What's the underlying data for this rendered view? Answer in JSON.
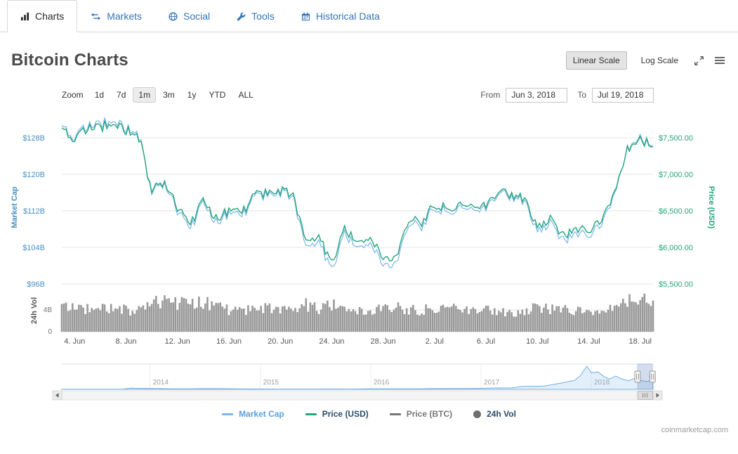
{
  "tabs": [
    {
      "label": "Charts",
      "icon": "bar-chart-icon",
      "active": true
    },
    {
      "label": "Markets",
      "icon": "exchange-arrows-icon",
      "active": false
    },
    {
      "label": "Social",
      "icon": "globe-icon",
      "active": false
    },
    {
      "label": "Tools",
      "icon": "wrench-icon",
      "active": false
    },
    {
      "label": "Historical Data",
      "icon": "calendar-icon",
      "active": false
    }
  ],
  "page_title": "Bitcoin Charts",
  "scale_controls": {
    "linear": "Linear Scale",
    "log": "Log Scale"
  },
  "zoom": {
    "label": "Zoom",
    "options": [
      "1d",
      "7d",
      "1m",
      "3m",
      "1y",
      "YTD",
      "ALL"
    ],
    "selected": "1m"
  },
  "range": {
    "from_label": "From",
    "from_value": "Jun 3, 2018",
    "to_label": "To",
    "to_value": "Jul 19, 2018"
  },
  "legend": [
    {
      "label": "Market Cap",
      "color": "#7cb5ec",
      "text_color": "#5ba0dc",
      "type": "line"
    },
    {
      "label": "Price (USD)",
      "color": "#23a57c",
      "text_color": "#274b6d",
      "type": "line"
    },
    {
      "label": "Price (BTC)",
      "color": "#777777",
      "text_color": "#777777",
      "type": "line"
    },
    {
      "label": "24h Vol",
      "color": "#6e6e6e",
      "text_color": "#274b6d",
      "type": "circle"
    }
  ],
  "watermark": "coinmarketcap.com",
  "chart_data": {
    "type": "line",
    "title": "Bitcoin Charts",
    "x_dates": [
      "Jun 3",
      "Jun 4",
      "Jun 5",
      "Jun 6",
      "Jun 7",
      "Jun 8",
      "Jun 9",
      "Jun 10",
      "Jun 11",
      "Jun 12",
      "Jun 13",
      "Jun 14",
      "Jun 15",
      "Jun 16",
      "Jun 17",
      "Jun 18",
      "Jun 19",
      "Jun 20",
      "Jun 21",
      "Jun 22",
      "Jun 23",
      "Jun 24",
      "Jun 25",
      "Jun 26",
      "Jun 27",
      "Jun 28",
      "Jun 29",
      "Jun 30",
      "Jul 1",
      "Jul 2",
      "Jul 3",
      "Jul 4",
      "Jul 5",
      "Jul 6",
      "Jul 7",
      "Jul 8",
      "Jul 9",
      "Jul 10",
      "Jul 11",
      "Jul 12",
      "Jul 13",
      "Jul 14",
      "Jul 15",
      "Jul 16",
      "Jul 17",
      "Jul 18",
      "Jul 19"
    ],
    "x_tick_labels": [
      "4. Jun",
      "8. Jun",
      "12. Jun",
      "16. Jun",
      "20. Jun",
      "24. Jun",
      "28. Jun",
      "2. Jul",
      "6. Jul",
      "10. Jul",
      "14. Jul",
      "18. Jul"
    ],
    "series": [
      {
        "name": "Market Cap",
        "axis": "left",
        "color": "#7cb5ec",
        "unit": "billion USD",
        "values": [
          130.8,
          127.9,
          130.4,
          131.0,
          131.5,
          130.1,
          128.4,
          116.2,
          117.6,
          112.1,
          107.9,
          113.7,
          109.6,
          111.3,
          110.6,
          114.9,
          115.4,
          115.9,
          115.2,
          103.9,
          105.3,
          99.0,
          107.0,
          104.3,
          105.3,
          100.7,
          100.2,
          109.4,
          108.7,
          113.0,
          111.6,
          113.0,
          112.1,
          113.0,
          115.9,
          114.9,
          114.2,
          107.9,
          109.2,
          105.5,
          106.7,
          107.0,
          108.7,
          115.2,
          125.3,
          127.9,
          126.3
        ]
      },
      {
        "name": "Price (USD)",
        "axis": "right",
        "color": "#23a57c",
        "unit": "USD",
        "values": [
          7640,
          7470,
          7620,
          7650,
          7680,
          7600,
          7500,
          6790,
          6870,
          6550,
          6300,
          6640,
          6400,
          6500,
          6460,
          6710,
          6740,
          6770,
          6730,
          6070,
          6150,
          5780,
          6250,
          6090,
          6150,
          5880,
          5850,
          6390,
          6350,
          6600,
          6520,
          6600,
          6550,
          6600,
          6770,
          6710,
          6670,
          6300,
          6380,
          6160,
          6230,
          6250,
          6350,
          6730,
          7320,
          7470,
          7380
        ]
      },
      {
        "name": "Price (BTC)",
        "axis": "hidden",
        "color": "#777777",
        "hidden": true,
        "values": []
      },
      {
        "name": "24h Vol",
        "type": "column",
        "axis": "volume",
        "color": "#999999",
        "unit": "billion USD",
        "values": [
          4.3,
          4.4,
          4.1,
          4.3,
          4.2,
          4.0,
          3.8,
          5.2,
          5.6,
          5.0,
          5.4,
          5.4,
          4.6,
          3.9,
          3.6,
          4.3,
          4.2,
          4.4,
          3.9,
          5.0,
          4.2,
          5.1,
          4.9,
          4.1,
          3.9,
          4.4,
          4.5,
          4.2,
          3.9,
          4.3,
          4.8,
          4.3,
          4.2,
          4.0,
          3.6,
          3.5,
          3.9,
          4.4,
          4.1,
          4.0,
          4.0,
          3.3,
          3.4,
          4.4,
          5.6,
          6.3,
          5.7
        ]
      }
    ],
    "left_axis": {
      "title": "Market Cap",
      "labels": [
        "$128B",
        "$120B",
        "$112B",
        "$104B",
        "$96B"
      ],
      "min": 96,
      "max": 128
    },
    "right_axis": {
      "title": "Price (USD)",
      "labels": [
        "$7,500.00",
        "$7,000.00",
        "$6,500.00",
        "$6,000.00",
        "$5,500.00"
      ],
      "min": 5500,
      "max": 7500
    },
    "volume_axis": {
      "title": "24h Vol",
      "labels": [
        "4B",
        "0"
      ],
      "min": 0,
      "max": 8
    },
    "grid": true,
    "legend_position": "bottom",
    "navigator": {
      "years": [
        "2014",
        "2015",
        "2016",
        "2017",
        "2018"
      ],
      "x_range": [
        2013.2,
        2018.56
      ],
      "window": [
        2018.42,
        2018.555
      ],
      "x": [
        2013.2,
        2013.4,
        2013.6,
        2013.75,
        2013.83,
        2013.88,
        2013.96,
        2014.05,
        2014.2,
        2014.37,
        2014.45,
        2014.55,
        2014.7,
        2014.85,
        2015.0,
        2015.15,
        2015.3,
        2015.5,
        2015.65,
        2015.8,
        2015.92,
        2016.0,
        2016.15,
        2016.3,
        2016.45,
        2016.55,
        2016.7,
        2016.85,
        2016.95,
        2017.05,
        2017.15,
        2017.28,
        2017.38,
        2017.5,
        2017.58,
        2017.68,
        2017.78,
        2017.85,
        2017.9,
        2017.96,
        2018.0,
        2018.06,
        2018.12,
        2018.17,
        2018.22,
        2018.28,
        2018.34,
        2018.4,
        2018.44,
        2018.5,
        2018.56
      ],
      "values": [
        95,
        105,
        120,
        150,
        1000,
        700,
        820,
        620,
        460,
        445,
        600,
        580,
        490,
        350,
        300,
        225,
        250,
        240,
        275,
        235,
        360,
        430,
        380,
        420,
        455,
        580,
        660,
        610,
        740,
        920,
        1150,
        1180,
        2450,
        2550,
        2800,
        4400,
        6100,
        7400,
        11000,
        19000,
        13600,
        14300,
        10200,
        8600,
        10900,
        8400,
        7000,
        9300,
        7500,
        6400,
        7400
      ]
    }
  }
}
